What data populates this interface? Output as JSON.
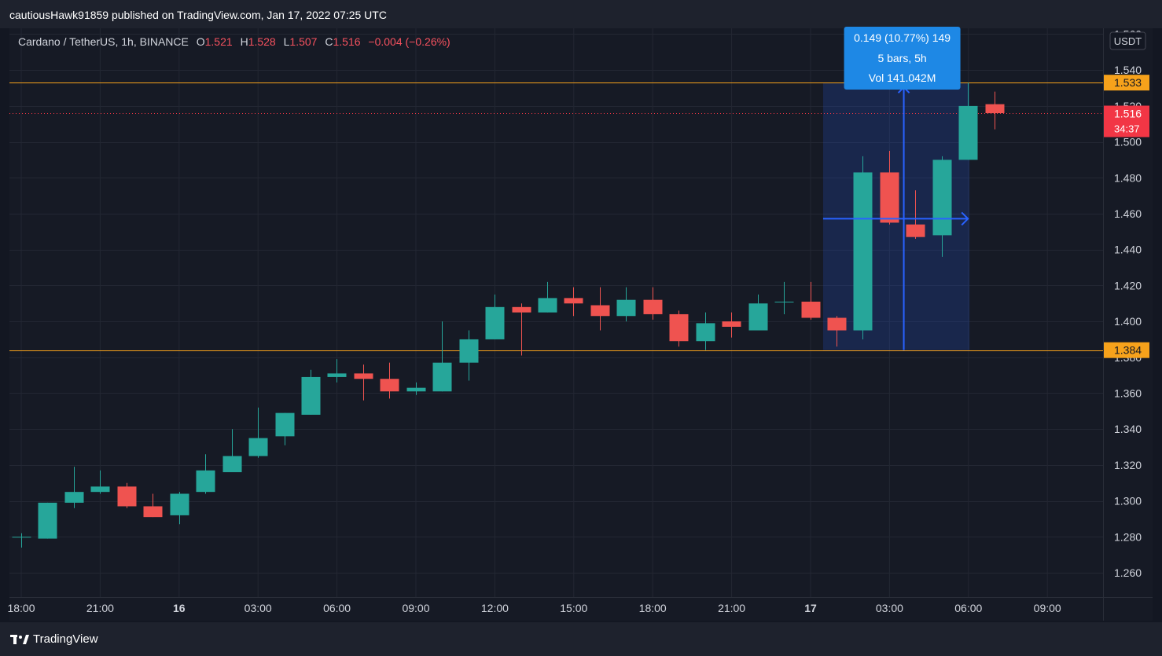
{
  "header": {
    "publisher": "cautiousHawk91859 published on TradingView.com, Jan 17, 2022 07:25 UTC"
  },
  "legend": {
    "symbol": "Cardano / TetherUS, 1h, BINANCE",
    "o_label": "O",
    "o_value": "1.521",
    "h_label": "H",
    "h_value": "1.528",
    "l_label": "L",
    "l_value": "1.507",
    "c_label": "C",
    "c_value": "1.516",
    "change": "−0.004 (−0.26%)"
  },
  "footer": {
    "brand": "TradingView"
  },
  "colors": {
    "up": "#26a69a",
    "down": "#ef5350",
    "level": "#f7a21b",
    "measure": "#2962ff",
    "tooltip": "#1e88e5",
    "price_label": "#f23645"
  },
  "chart_data": {
    "type": "candlestick",
    "title": "Cardano / TetherUS, 1h, BINANCE",
    "currency": "USDT",
    "ylim": [
      1.25,
      1.57
    ],
    "y_ticks": [
      1.26,
      1.28,
      1.3,
      1.32,
      1.34,
      1.36,
      1.38,
      1.4,
      1.42,
      1.44,
      1.46,
      1.48,
      1.5,
      1.52,
      1.54,
      1.56
    ],
    "x_ticks": [
      "18:00",
      "21:00",
      "16",
      "03:00",
      "06:00",
      "09:00",
      "12:00",
      "15:00",
      "18:00",
      "21:00",
      "17",
      "03:00",
      "06:00",
      "09:00"
    ],
    "candles": [
      {
        "o": 1.28,
        "h": 1.282,
        "l": 1.274,
        "c": 1.28
      },
      {
        "o": 1.279,
        "h": 1.299,
        "l": 1.279,
        "c": 1.299
      },
      {
        "o": 1.299,
        "h": 1.319,
        "l": 1.296,
        "c": 1.305
      },
      {
        "o": 1.305,
        "h": 1.317,
        "l": 1.304,
        "c": 1.308
      },
      {
        "o": 1.308,
        "h": 1.31,
        "l": 1.296,
        "c": 1.297
      },
      {
        "o": 1.297,
        "h": 1.304,
        "l": 1.291,
        "c": 1.291
      },
      {
        "o": 1.292,
        "h": 1.305,
        "l": 1.287,
        "c": 1.304
      },
      {
        "o": 1.305,
        "h": 1.326,
        "l": 1.304,
        "c": 1.317
      },
      {
        "o": 1.316,
        "h": 1.34,
        "l": 1.316,
        "c": 1.325
      },
      {
        "o": 1.325,
        "h": 1.352,
        "l": 1.324,
        "c": 1.335
      },
      {
        "o": 1.336,
        "h": 1.349,
        "l": 1.331,
        "c": 1.349
      },
      {
        "o": 1.348,
        "h": 1.373,
        "l": 1.348,
        "c": 1.369
      },
      {
        "o": 1.369,
        "h": 1.379,
        "l": 1.366,
        "c": 1.371
      },
      {
        "o": 1.371,
        "h": 1.376,
        "l": 1.356,
        "c": 1.368
      },
      {
        "o": 1.368,
        "h": 1.377,
        "l": 1.357,
        "c": 1.361
      },
      {
        "o": 1.361,
        "h": 1.366,
        "l": 1.359,
        "c": 1.363
      },
      {
        "o": 1.361,
        "h": 1.4,
        "l": 1.361,
        "c": 1.377
      },
      {
        "o": 1.377,
        "h": 1.395,
        "l": 1.367,
        "c": 1.39
      },
      {
        "o": 1.39,
        "h": 1.415,
        "l": 1.39,
        "c": 1.408
      },
      {
        "o": 1.408,
        "h": 1.41,
        "l": 1.381,
        "c": 1.405
      },
      {
        "o": 1.405,
        "h": 1.422,
        "l": 1.405,
        "c": 1.413
      },
      {
        "o": 1.413,
        "h": 1.419,
        "l": 1.403,
        "c": 1.41
      },
      {
        "o": 1.409,
        "h": 1.419,
        "l": 1.395,
        "c": 1.403
      },
      {
        "o": 1.403,
        "h": 1.419,
        "l": 1.4,
        "c": 1.412
      },
      {
        "o": 1.412,
        "h": 1.419,
        "l": 1.401,
        "c": 1.404
      },
      {
        "o": 1.404,
        "h": 1.406,
        "l": 1.386,
        "c": 1.389
      },
      {
        "o": 1.389,
        "h": 1.405,
        "l": 1.384,
        "c": 1.399
      },
      {
        "o": 1.4,
        "h": 1.405,
        "l": 1.391,
        "c": 1.397
      },
      {
        "o": 1.395,
        "h": 1.415,
        "l": 1.395,
        "c": 1.41
      },
      {
        "o": 1.411,
        "h": 1.422,
        "l": 1.404,
        "c": 1.411
      },
      {
        "o": 1.411,
        "h": 1.422,
        "l": 1.401,
        "c": 1.402
      },
      {
        "o": 1.402,
        "h": 1.403,
        "l": 1.386,
        "c": 1.395
      },
      {
        "o": 1.395,
        "h": 1.492,
        "l": 1.39,
        "c": 1.483
      },
      {
        "o": 1.483,
        "h": 1.495,
        "l": 1.454,
        "c": 1.455
      },
      {
        "o": 1.454,
        "h": 1.473,
        "l": 1.446,
        "c": 1.447
      },
      {
        "o": 1.448,
        "h": 1.492,
        "l": 1.436,
        "c": 1.49
      },
      {
        "o": 1.49,
        "h": 1.533,
        "l": 1.49,
        "c": 1.52
      },
      {
        "o": 1.521,
        "h": 1.528,
        "l": 1.507,
        "c": 1.516
      }
    ],
    "level_lines": [
      {
        "value": 1.533,
        "label": "1.533"
      },
      {
        "value": 1.384,
        "label": "1.384"
      }
    ],
    "current_price": {
      "value": 1.516,
      "label": "1.516",
      "countdown": "34:37"
    },
    "measurement": {
      "from_index": 31,
      "to_index": 36,
      "low": 1.384,
      "high": 1.533,
      "line1": "0.149 (10.77%) 149",
      "line2": "5 bars, 5h",
      "line3": "Vol 141.042M"
    }
  }
}
